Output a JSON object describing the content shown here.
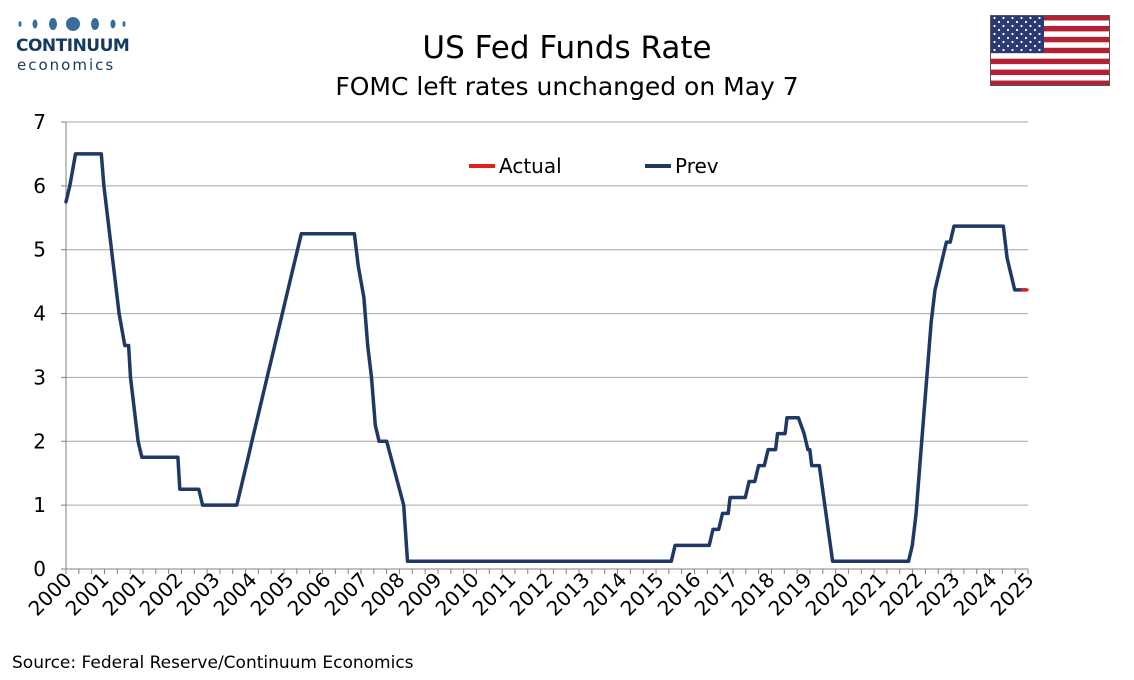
{
  "brand": {
    "name": "CONTINUUM",
    "tagline": "economics"
  },
  "source": "Source: Federal Reserve/Continuum Economics",
  "colors": {
    "actual": "#e0201b",
    "prev": "#1f3864",
    "grid": "#a6a6a6",
    "brand": "#163a5f"
  },
  "flag": {
    "icon": "us-flag-icon"
  },
  "chart_data": {
    "type": "line",
    "title": "US Fed Funds Rate",
    "subtitle": "FOMC left rates unchanged on May 7",
    "xlabel": "",
    "ylabel": "",
    "ylim": [
      0,
      7
    ],
    "yticks": [
      0,
      1,
      2,
      3,
      4,
      5,
      6,
      7
    ],
    "x_tick_labels": [
      "2000",
      "2001",
      "2001",
      "2002",
      "2003",
      "2004",
      "2005",
      "2006",
      "2007",
      "2008",
      "2009",
      "2010",
      "2011",
      "2012",
      "2013",
      "2014",
      "2015",
      "2016",
      "2017",
      "2018",
      "2019",
      "2020",
      "2021",
      "2022",
      "2023",
      "2024",
      "2025"
    ],
    "xlim": [
      2000.0,
      2025.35
    ],
    "grid": true,
    "legend": "top-center",
    "series": [
      {
        "name": "Prev",
        "color": "#1f3864",
        "x": [
          2000.0,
          2000.1,
          2000.25,
          2000.4,
          2000.93,
          2001.0,
          2001.1,
          2001.2,
          2001.3,
          2001.4,
          2001.55,
          2001.65,
          2001.7,
          2001.8,
          2001.9,
          2002.0,
          2002.95,
          2003.0,
          2003.5,
          2003.6,
          2004.5,
          2004.6,
          2004.7,
          2004.8,
          2004.9,
          2005.0,
          2005.1,
          2005.2,
          2005.3,
          2005.4,
          2005.5,
          2005.6,
          2005.7,
          2005.8,
          2005.9,
          2006.0,
          2006.1,
          2006.2,
          2006.3,
          2006.4,
          2006.5,
          2007.6,
          2007.7,
          2007.85,
          2007.95,
          2008.05,
          2008.15,
          2008.25,
          2008.35,
          2008.45,
          2008.9,
          2009.0,
          2009.1,
          2009.2,
          2015.95,
          2016.05,
          2016.95,
          2017.05,
          2017.2,
          2017.3,
          2017.45,
          2017.5,
          2017.9,
          2018.0,
          2018.15,
          2018.25,
          2018.4,
          2018.5,
          2018.7,
          2018.75,
          2018.95,
          2019.0,
          2019.3,
          2019.45,
          2019.55,
          2019.6,
          2019.65,
          2019.75,
          2019.85,
          2020.2,
          2020.27,
          2022.2,
          2022.3,
          2022.4,
          2022.5,
          2022.6,
          2022.7,
          2022.8,
          2022.9,
          2023.0,
          2023.1,
          2023.2,
          2023.3,
          2023.4,
          2023.5,
          2023.6,
          2023.7,
          2024.7,
          2024.8,
          2024.9,
          2025.0,
          2025.3
        ],
        "values": [
          5.75,
          6.0,
          6.5,
          6.5,
          6.5,
          6.0,
          5.5,
          5.0,
          4.5,
          4.0,
          3.5,
          3.5,
          3.0,
          2.5,
          2.0,
          1.75,
          1.75,
          1.25,
          1.25,
          1.0,
          1.0,
          1.25,
          1.5,
          1.75,
          2.0,
          2.25,
          2.5,
          2.75,
          3.0,
          3.25,
          3.5,
          3.75,
          4.0,
          4.25,
          4.5,
          4.75,
          5.0,
          5.25,
          5.25,
          5.25,
          5.25,
          5.25,
          4.75,
          4.25,
          3.5,
          3.0,
          2.25,
          2.0,
          2.0,
          2.0,
          1.0,
          0.12,
          0.12,
          0.12,
          0.12,
          0.37,
          0.37,
          0.62,
          0.62,
          0.87,
          0.87,
          1.12,
          1.12,
          1.37,
          1.37,
          1.62,
          1.62,
          1.87,
          1.87,
          2.12,
          2.12,
          2.37,
          2.37,
          2.12,
          1.87,
          1.87,
          1.62,
          1.62,
          1.62,
          0.12,
          0.12,
          0.12,
          0.37,
          0.87,
          1.62,
          2.37,
          3.12,
          3.87,
          4.37,
          4.62,
          4.87,
          5.12,
          5.12,
          5.37,
          5.37,
          5.37,
          5.37,
          5.37,
          4.87,
          4.62,
          4.37,
          4.37
        ]
      },
      {
        "name": "Actual",
        "color": "#e0201b",
        "x": [
          2025.2,
          2025.33
        ],
        "values": [
          4.37,
          4.37
        ]
      }
    ]
  }
}
